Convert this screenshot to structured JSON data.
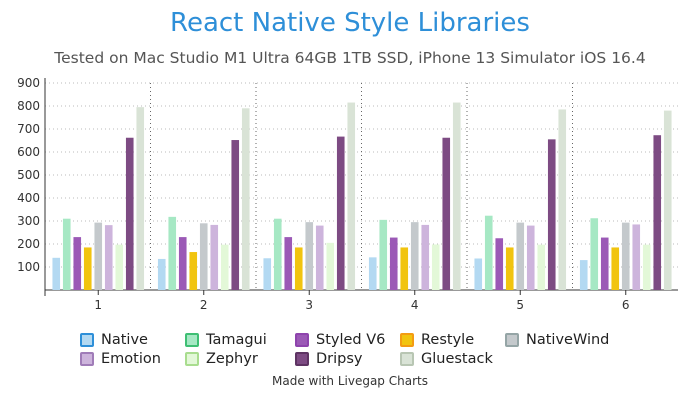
{
  "chart_data": {
    "type": "bar",
    "title": "React Native Style Libraries",
    "subtitle": "Tested on Mac Studio M1 Ultra 64GB 1TB SSD, iPhone 13 Simulator iOS 16.4",
    "categories": [
      "1",
      "2",
      "3",
      "4",
      "5",
      "6"
    ],
    "ylim": [
      0,
      900
    ],
    "yticks": [
      100,
      200,
      300,
      400,
      500,
      600,
      700,
      800,
      900
    ],
    "grid": true,
    "legend_position": "bottom",
    "series": [
      {
        "name": "Native",
        "color": "#b3d9f2",
        "border": "#2e8fd8",
        "values": [
          140,
          135,
          138,
          142,
          137,
          130
        ]
      },
      {
        "name": "Tamagui",
        "color": "#a6e8c4",
        "border": "#3fbf74",
        "values": [
          310,
          318,
          310,
          305,
          323,
          312
        ]
      },
      {
        "name": "Styled V6",
        "color": "#9b59b6",
        "border": "#8e44ad",
        "values": [
          230,
          230,
          230,
          228,
          225,
          228
        ]
      },
      {
        "name": "Restyle",
        "color": "#f1c40f",
        "border": "#f39c12",
        "values": [
          185,
          165,
          185,
          185,
          185,
          185
        ]
      },
      {
        "name": "NativeWind",
        "color": "#c4c9cc",
        "border": "#95a5a6",
        "values": [
          293,
          290,
          295,
          295,
          293,
          293
        ]
      },
      {
        "name": "Emotion",
        "color": "#cdb4dc",
        "border": "#a07cb8",
        "values": [
          282,
          283,
          280,
          283,
          280,
          285
        ]
      },
      {
        "name": "Zephyr",
        "color": "#e3f8d8",
        "border": "#a9dd8f",
        "values": [
          197,
          197,
          205,
          198,
          197,
          197
        ]
      },
      {
        "name": "Dripsy",
        "color": "#7d4b83",
        "border": "#5e3463",
        "values": [
          662,
          652,
          667,
          662,
          655,
          673
        ]
      },
      {
        "name": "Gluestack",
        "color": "#d9e3d6",
        "border": "#b8c6b3",
        "values": [
          795,
          790,
          815,
          815,
          785,
          780
        ]
      }
    ]
  },
  "footer": "Made with Livegap Charts"
}
